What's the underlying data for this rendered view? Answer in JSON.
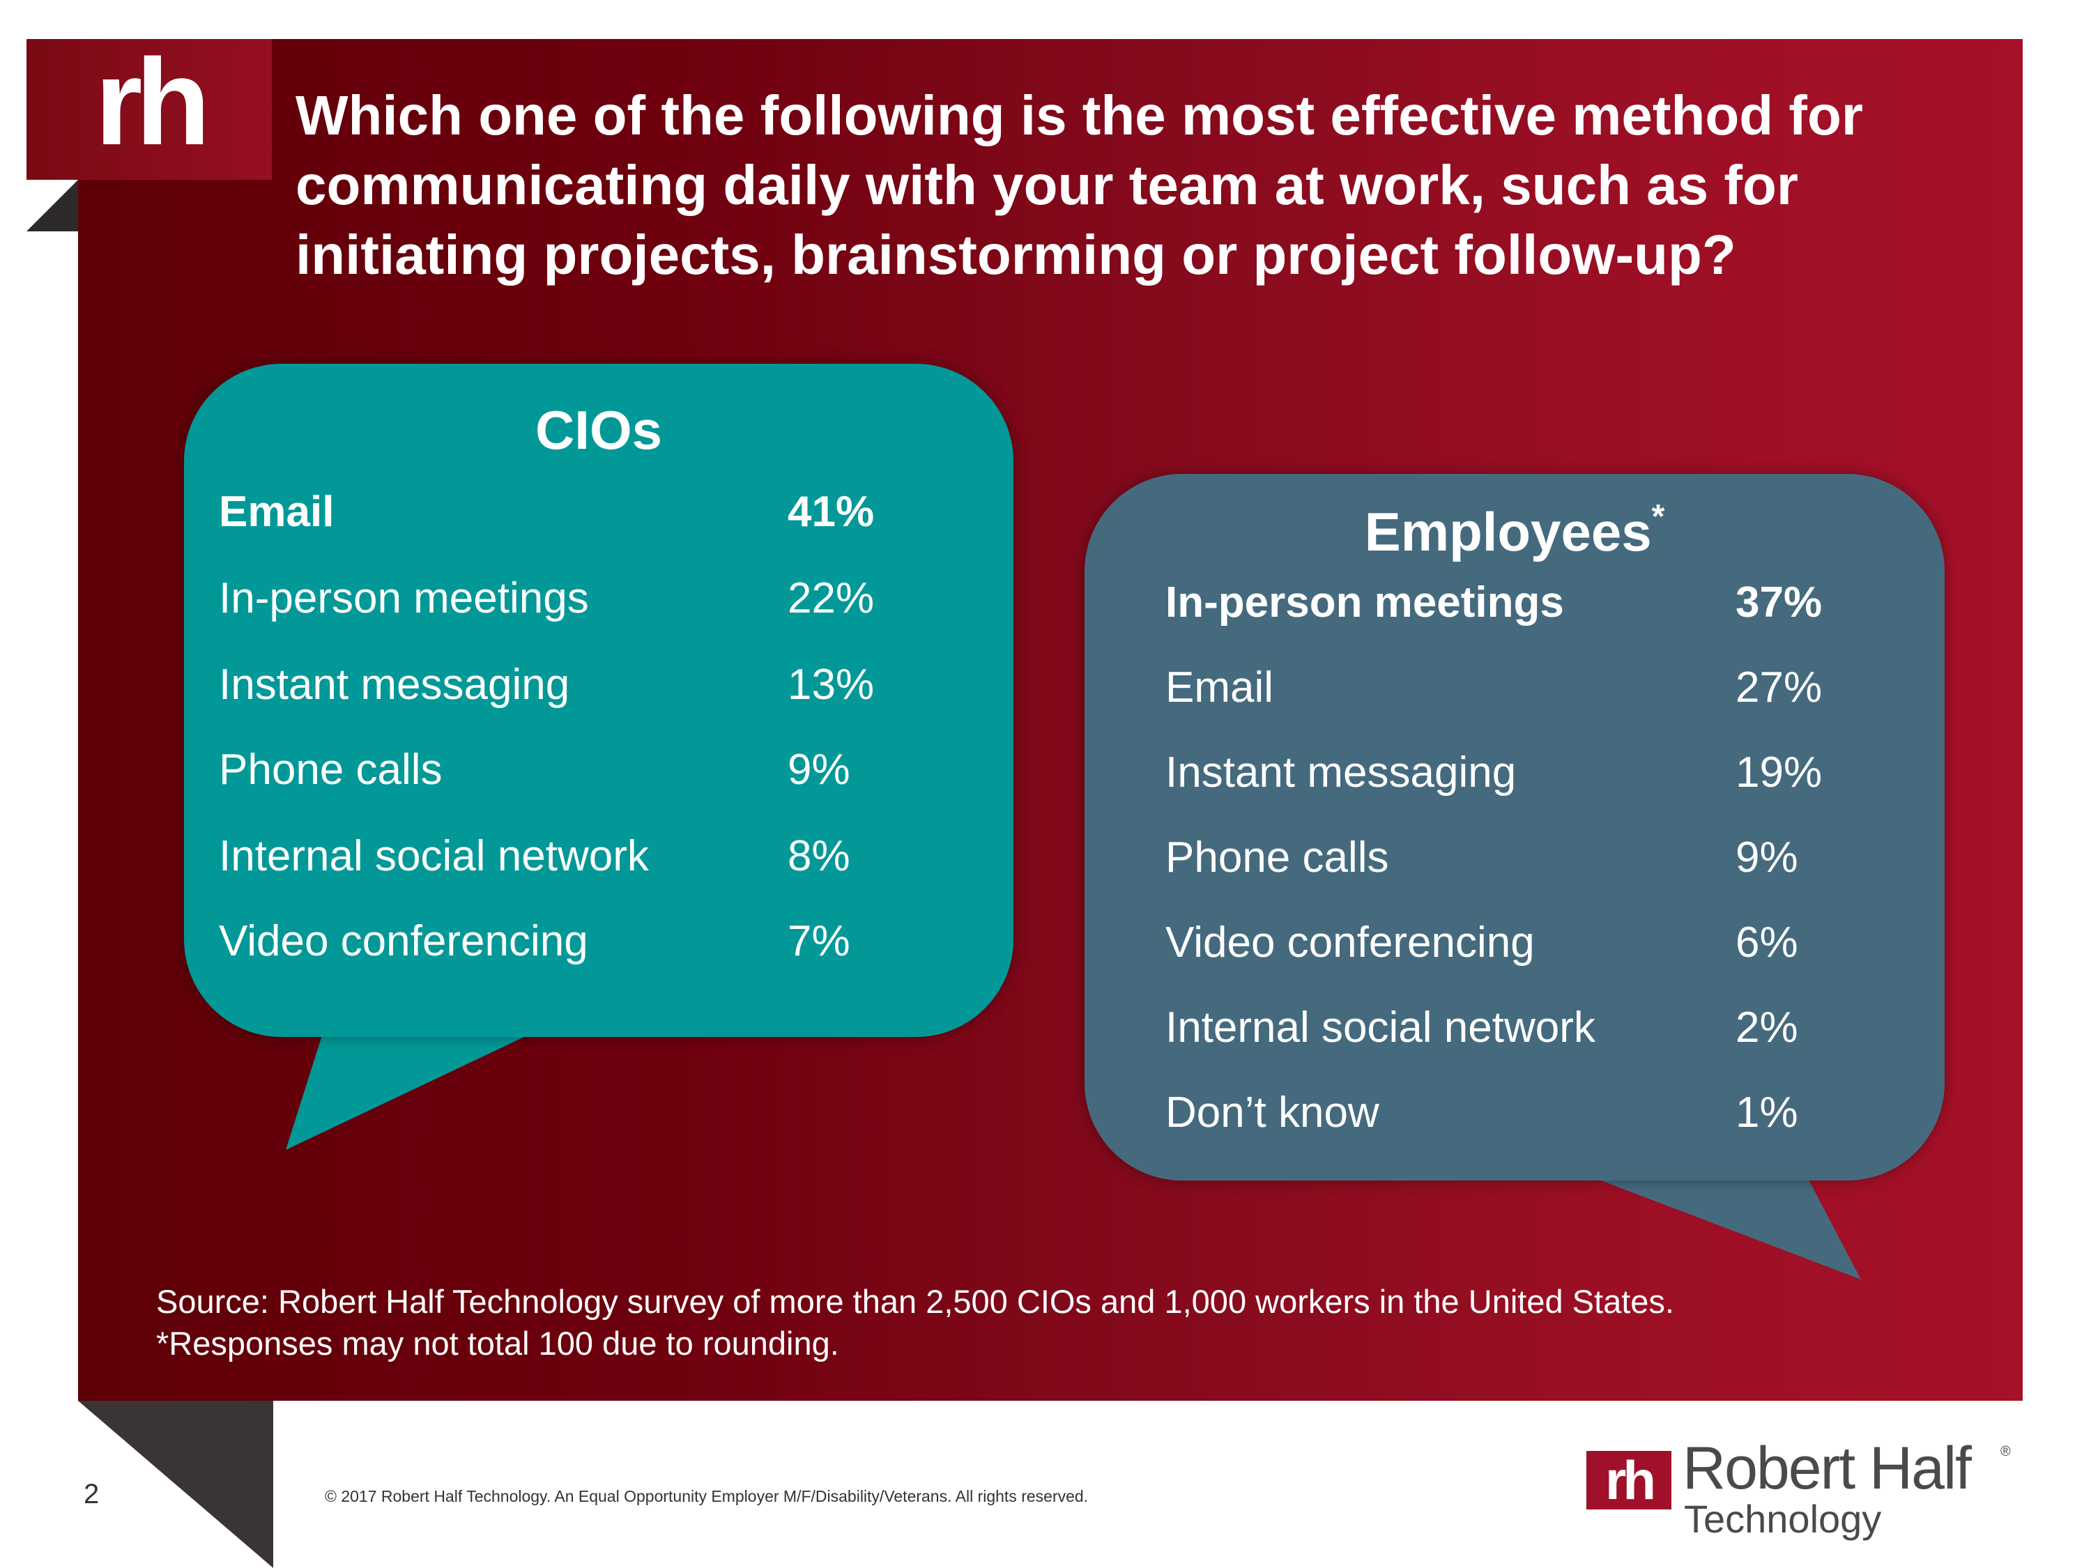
{
  "header": {
    "logo": "rh",
    "question": "Which one of the following is the most effective method for communicating daily with your team at work, such as for initiating projects, brainstorming or project follow-up?"
  },
  "cios": {
    "title": "CIOs",
    "color": "#039898",
    "rows": [
      {
        "label": "Email",
        "value": "41%"
      },
      {
        "label": "In-person meetings",
        "value": "22%"
      },
      {
        "label": "Instant messaging",
        "value": "13%"
      },
      {
        "label": "Phone calls",
        "value": "9%"
      },
      {
        "label": "Internal social network",
        "value": "8%"
      },
      {
        "label": "Video conferencing",
        "value": "7%"
      }
    ]
  },
  "employees": {
    "title": "Employees",
    "asterisk": "*",
    "color": "#456a7e",
    "rows": [
      {
        "label": "In-person meetings",
        "value": "37%"
      },
      {
        "label": "Email",
        "value": "27%"
      },
      {
        "label": "Instant messaging",
        "value": "19%"
      },
      {
        "label": "Phone calls",
        "value": "9%"
      },
      {
        "label": "Video conferencing",
        "value": "6%"
      },
      {
        "label": "Internal social network",
        "value": "2%"
      },
      {
        "label": "Don’t know",
        "value": "1%"
      }
    ]
  },
  "footer": {
    "source": "Source: Robert Half Technology survey of more than 2,500 CIOs and 1,000 workers in the United States.",
    "note": "*Responses may not total 100 due to rounding.",
    "page_number": "2",
    "copyright": "© 2017 Robert Half Technology. An Equal Opportunity Employer M/F/Disability/Veterans. All rights reserved.",
    "brand_mark": "rh",
    "brand_name": "Robert Half",
    "brand_reg": "®",
    "brand_sub": "Technology"
  },
  "colors": {
    "banner_dark": "#5e0008",
    "banner_light": "#a61028",
    "brand_red": "#a0102a"
  }
}
